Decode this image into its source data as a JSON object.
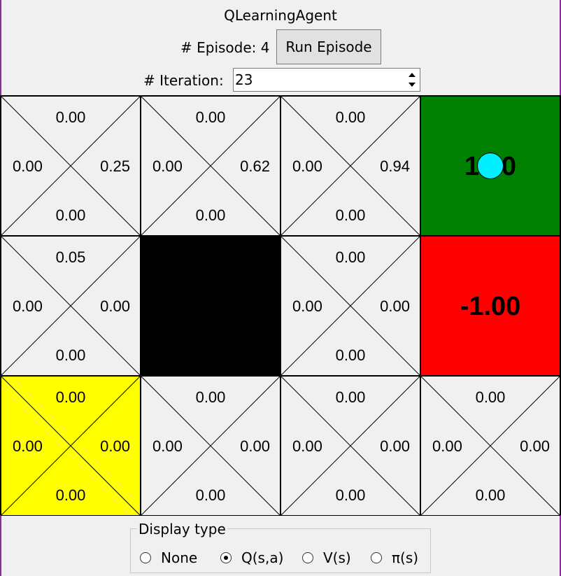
{
  "window": {
    "title": "QLearningAgent"
  },
  "episode": {
    "label": "# Episode: 4",
    "run_label": "Run Episode"
  },
  "iteration": {
    "label": "# Iteration:",
    "value": "23"
  },
  "grid": {
    "rows": [
      [
        {
          "type": "state",
          "n": "0.00",
          "w": "0.00",
          "e": "0.25",
          "s": "0.00"
        },
        {
          "type": "state",
          "n": "0.00",
          "w": "0.00",
          "e": "0.62",
          "s": "0.00"
        },
        {
          "type": "state",
          "n": "0.00",
          "w": "0.00",
          "e": "0.94",
          "s": "0.00"
        },
        {
          "type": "terminal",
          "value": "1.00",
          "color": "#008000",
          "agent": true
        }
      ],
      [
        {
          "type": "state",
          "n": "0.05",
          "w": "0.00",
          "e": "0.00",
          "s": "0.00"
        },
        {
          "type": "wall",
          "color": "#000000"
        },
        {
          "type": "state",
          "n": "0.00",
          "w": "0.00",
          "e": "0.00",
          "s": "0.00"
        },
        {
          "type": "terminal",
          "value": "-1.00",
          "color": "#ff0000"
        }
      ],
      [
        {
          "type": "state",
          "start": true,
          "color": "#ffff00",
          "n": "0.00",
          "w": "0.00",
          "e": "0.00",
          "s": "0.00"
        },
        {
          "type": "state",
          "n": "0.00",
          "w": "0.00",
          "e": "0.00",
          "s": "0.00"
        },
        {
          "type": "state",
          "n": "0.00",
          "w": "0.00",
          "e": "0.00",
          "s": "0.00"
        },
        {
          "type": "state",
          "n": "0.00",
          "w": "0.00",
          "e": "0.00",
          "s": "0.00"
        }
      ]
    ],
    "cell_bg": "#f0f0f0",
    "agent_color": "#00f0ff"
  },
  "display_type": {
    "legend": "Display type",
    "options": [
      {
        "label": "None",
        "selected": false
      },
      {
        "label": "Q(s,a)",
        "selected": true
      },
      {
        "label": "V(s)",
        "selected": false
      },
      {
        "label": "π(s)",
        "selected": false
      }
    ]
  }
}
